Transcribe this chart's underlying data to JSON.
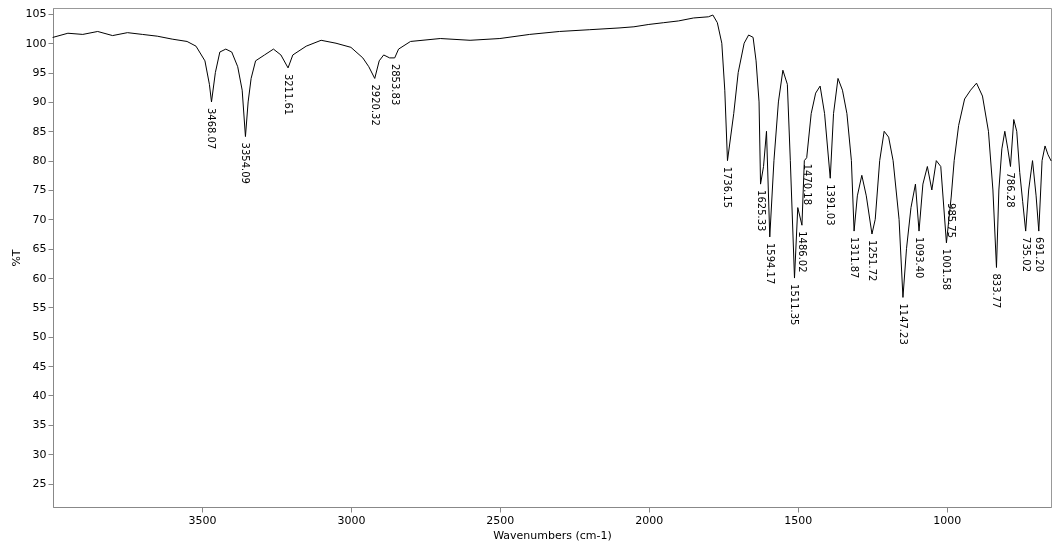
{
  "chart_data": {
    "type": "line",
    "xlabel": "Wavenumbers (cm-1)",
    "ylabel": "%T",
    "xlim": [
      4000,
      650
    ],
    "ylim": [
      21,
      106
    ],
    "xticks": [
      3500,
      3000,
      2500,
      2000,
      1500,
      1000
    ],
    "yticks": [
      25,
      30,
      35,
      40,
      45,
      50,
      55,
      60,
      65,
      70,
      75,
      80,
      85,
      90,
      95,
      100,
      105
    ],
    "grid": false,
    "line_style": "solid",
    "marker": "none",
    "series": [
      {
        "color": "#000000",
        "x": [
          4000,
          3950,
          3900,
          3850,
          3800,
          3750,
          3700,
          3650,
          3600,
          3550,
          3520,
          3490,
          3475,
          3468,
          3455,
          3440,
          3420,
          3400,
          3380,
          3365,
          3354,
          3345,
          3335,
          3320,
          3290,
          3260,
          3235,
          3211,
          3195,
          3150,
          3100,
          3050,
          3000,
          2960,
          2940,
          2920,
          2905,
          2890,
          2870,
          2853,
          2840,
          2800,
          2700,
          2600,
          2500,
          2400,
          2300,
          2200,
          2100,
          2050,
          2000,
          1950,
          1900,
          1850,
          1800,
          1785,
          1770,
          1755,
          1745,
          1736,
          1715,
          1700,
          1680,
          1665,
          1650,
          1640,
          1630,
          1625,
          1615,
          1605,
          1594,
          1580,
          1565,
          1550,
          1535,
          1525,
          1511,
          1500,
          1486,
          1478,
          1470,
          1455,
          1440,
          1425,
          1410,
          1391,
          1380,
          1365,
          1350,
          1335,
          1320,
          1311,
          1300,
          1285,
          1270,
          1251,
          1240,
          1225,
          1210,
          1195,
          1180,
          1160,
          1147,
          1135,
          1120,
          1105,
          1093,
          1080,
          1065,
          1050,
          1035,
          1020,
          1001,
          985,
          975,
          960,
          940,
          920,
          900,
          880,
          860,
          845,
          833,
          825,
          815,
          805,
          795,
          786,
          775,
          765,
          755,
          745,
          735,
          725,
          712,
          700,
          691,
          680,
          670,
          660,
          650
        ],
        "values": [
          101.0,
          101.7,
          101.5,
          102.0,
          101.3,
          101.8,
          101.5,
          101.2,
          100.7,
          100.3,
          99.5,
          97,
          93,
          90,
          95,
          98.5,
          99,
          98.5,
          96,
          92,
          84.1,
          90,
          94,
          97,
          98,
          99.0,
          98,
          95.8,
          98,
          99.5,
          100.5,
          100.0,
          99.3,
          97.5,
          96,
          94.0,
          97,
          98,
          97.5,
          97.5,
          99,
          100.3,
          100.8,
          100.5,
          100.8,
          101.5,
          102.0,
          102.3,
          102.6,
          102.8,
          103.2,
          103.5,
          103.8,
          104.3,
          104.5,
          104.8,
          103.5,
          100,
          92,
          80,
          88,
          95,
          100,
          101.4,
          101,
          97,
          90,
          76,
          79,
          85,
          67,
          80,
          90,
          95.4,
          93,
          80,
          60,
          72,
          69,
          80,
          80.5,
          88,
          91.5,
          92.7,
          88,
          77,
          88,
          94,
          92,
          88,
          80,
          68,
          74,
          77.5,
          74,
          67.5,
          70,
          80,
          85,
          84,
          80,
          70,
          56.7,
          65,
          72,
          76,
          68,
          76,
          79,
          75,
          80,
          79,
          66,
          73.8,
          80,
          86,
          90.5,
          92,
          93.2,
          91,
          85,
          75,
          61.8,
          75,
          82,
          85,
          82,
          79,
          87,
          85,
          78,
          73,
          68,
          75,
          80,
          74,
          68,
          80,
          82.5,
          81,
          80
        ]
      }
    ],
    "annotations": [
      {
        "text": "3468.07",
        "x": 3468,
        "y": 90
      },
      {
        "text": "3354.09",
        "x": 3354,
        "y": 84.1
      },
      {
        "text": "3211.61",
        "x": 3211,
        "y": 95.8
      },
      {
        "text": "2920.32",
        "x": 2920,
        "y": 94.0
      },
      {
        "text": "2853.83",
        "x": 2853,
        "y": 97.5
      },
      {
        "text": "1736.15",
        "x": 1736,
        "y": 80
      },
      {
        "text": "1625.33",
        "x": 1625,
        "y": 76
      },
      {
        "text": "1594.17",
        "x": 1594,
        "y": 67
      },
      {
        "text": "1511.35",
        "x": 1511,
        "y": 60
      },
      {
        "text": "1486.02",
        "x": 1486,
        "y": 69
      },
      {
        "text": "1470.18",
        "x": 1470,
        "y": 80.5
      },
      {
        "text": "1391.03",
        "x": 1391,
        "y": 77
      },
      {
        "text": "1311.87",
        "x": 1311,
        "y": 68
      },
      {
        "text": "1251.72",
        "x": 1251,
        "y": 67.5
      },
      {
        "text": "1147.23",
        "x": 1147,
        "y": 56.7
      },
      {
        "text": "1093.40",
        "x": 1093,
        "y": 68
      },
      {
        "text": "1001.58",
        "x": 1001,
        "y": 66
      },
      {
        "text": "985.75",
        "x": 985,
        "y": 73.8
      },
      {
        "text": "833.77",
        "x": 833,
        "y": 61.8
      },
      {
        "text": "786.28",
        "x": 786,
        "y": 79
      },
      {
        "text": "735.02",
        "x": 735,
        "y": 68
      },
      {
        "text": "691.20",
        "x": 691,
        "y": 68
      }
    ]
  }
}
